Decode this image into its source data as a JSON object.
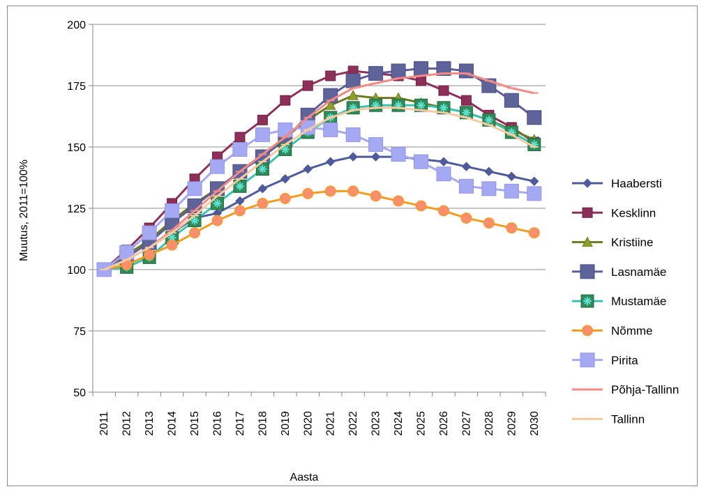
{
  "chart_data": {
    "type": "line",
    "title": "",
    "xlabel": "Aasta",
    "ylabel": "Muutus, 2011=100%",
    "ylim": [
      50,
      200
    ],
    "yticks": [
      50,
      75,
      100,
      125,
      150,
      175,
      200
    ],
    "grid": true,
    "legend_position": "right",
    "categories": [
      "2011",
      "2012",
      "2013",
      "2014",
      "2015",
      "2016",
      "2017",
      "2018",
      "2019",
      "2020",
      "2021",
      "2022",
      "2023",
      "2024",
      "2025",
      "2026",
      "2027",
      "2028",
      "2029",
      "2030"
    ],
    "series": [
      {
        "name": "Haabersti",
        "color": "#4f5a9b",
        "marker": "diamond",
        "values": [
          100,
          104,
          109,
          115,
          121,
          123,
          128,
          133,
          137,
          141,
          144,
          146,
          146,
          146,
          145,
          144,
          142,
          140,
          138,
          136
        ]
      },
      {
        "name": "Kesklinn",
        "color": "#8e2f5a",
        "marker": "square-small",
        "values": [
          100,
          108,
          117,
          127,
          137,
          146,
          154,
          161,
          169,
          175,
          179,
          181,
          180,
          179,
          177,
          173,
          169,
          163,
          158,
          152
        ]
      },
      {
        "name": "Kristiine",
        "color": "#6b7a1e",
        "marker": "triangle",
        "values": [
          100,
          106,
          112,
          120,
          127,
          133,
          140,
          147,
          154,
          161,
          167,
          171,
          170,
          170,
          168,
          166,
          164,
          161,
          157,
          153
        ]
      },
      {
        "name": "Lasnamäe",
        "color": "#5b5f98",
        "marker": "square-large",
        "values": [
          100,
          105,
          111,
          119,
          126,
          133,
          140,
          146,
          153,
          163,
          171,
          177,
          180,
          181,
          182,
          182,
          181,
          175,
          169,
          162
        ]
      },
      {
        "name": "Mustamäe",
        "color": "#3cc3b0",
        "marker": "green-star",
        "values": [
          100,
          101,
          105,
          113,
          120,
          127,
          134,
          141,
          149,
          156,
          162,
          166,
          167,
          167,
          167,
          166,
          164,
          161,
          156,
          151
        ]
      },
      {
        "name": "Nõmme",
        "color": "#f39c1e",
        "marker": "circle",
        "values": [
          100,
          102,
          106,
          110,
          115,
          120,
          124,
          127,
          129,
          131,
          132,
          132,
          130,
          128,
          126,
          124,
          121,
          119,
          117,
          115
        ]
      },
      {
        "name": "Pirita",
        "color": "#a5a8f2",
        "marker": "square-light",
        "values": [
          100,
          107,
          115,
          124,
          133,
          142,
          149,
          155,
          157,
          158,
          157,
          155,
          151,
          147,
          144,
          139,
          134,
          133,
          132,
          131
        ]
      },
      {
        "name": "Põhja-Tallinn",
        "color": "#f48a86",
        "marker": "dash",
        "values": [
          100,
          104,
          109,
          116,
          124,
          132,
          140,
          147,
          154,
          162,
          169,
          174,
          176,
          178,
          179,
          180,
          180,
          177,
          174,
          172
        ]
      },
      {
        "name": "Tallinn",
        "color": "#f6c9a0",
        "marker": "dash",
        "values": [
          100,
          104,
          109,
          115,
          122,
          130,
          137,
          144,
          151,
          157,
          162,
          165,
          166,
          166,
          165,
          164,
          162,
          159,
          155,
          150
        ]
      }
    ]
  }
}
